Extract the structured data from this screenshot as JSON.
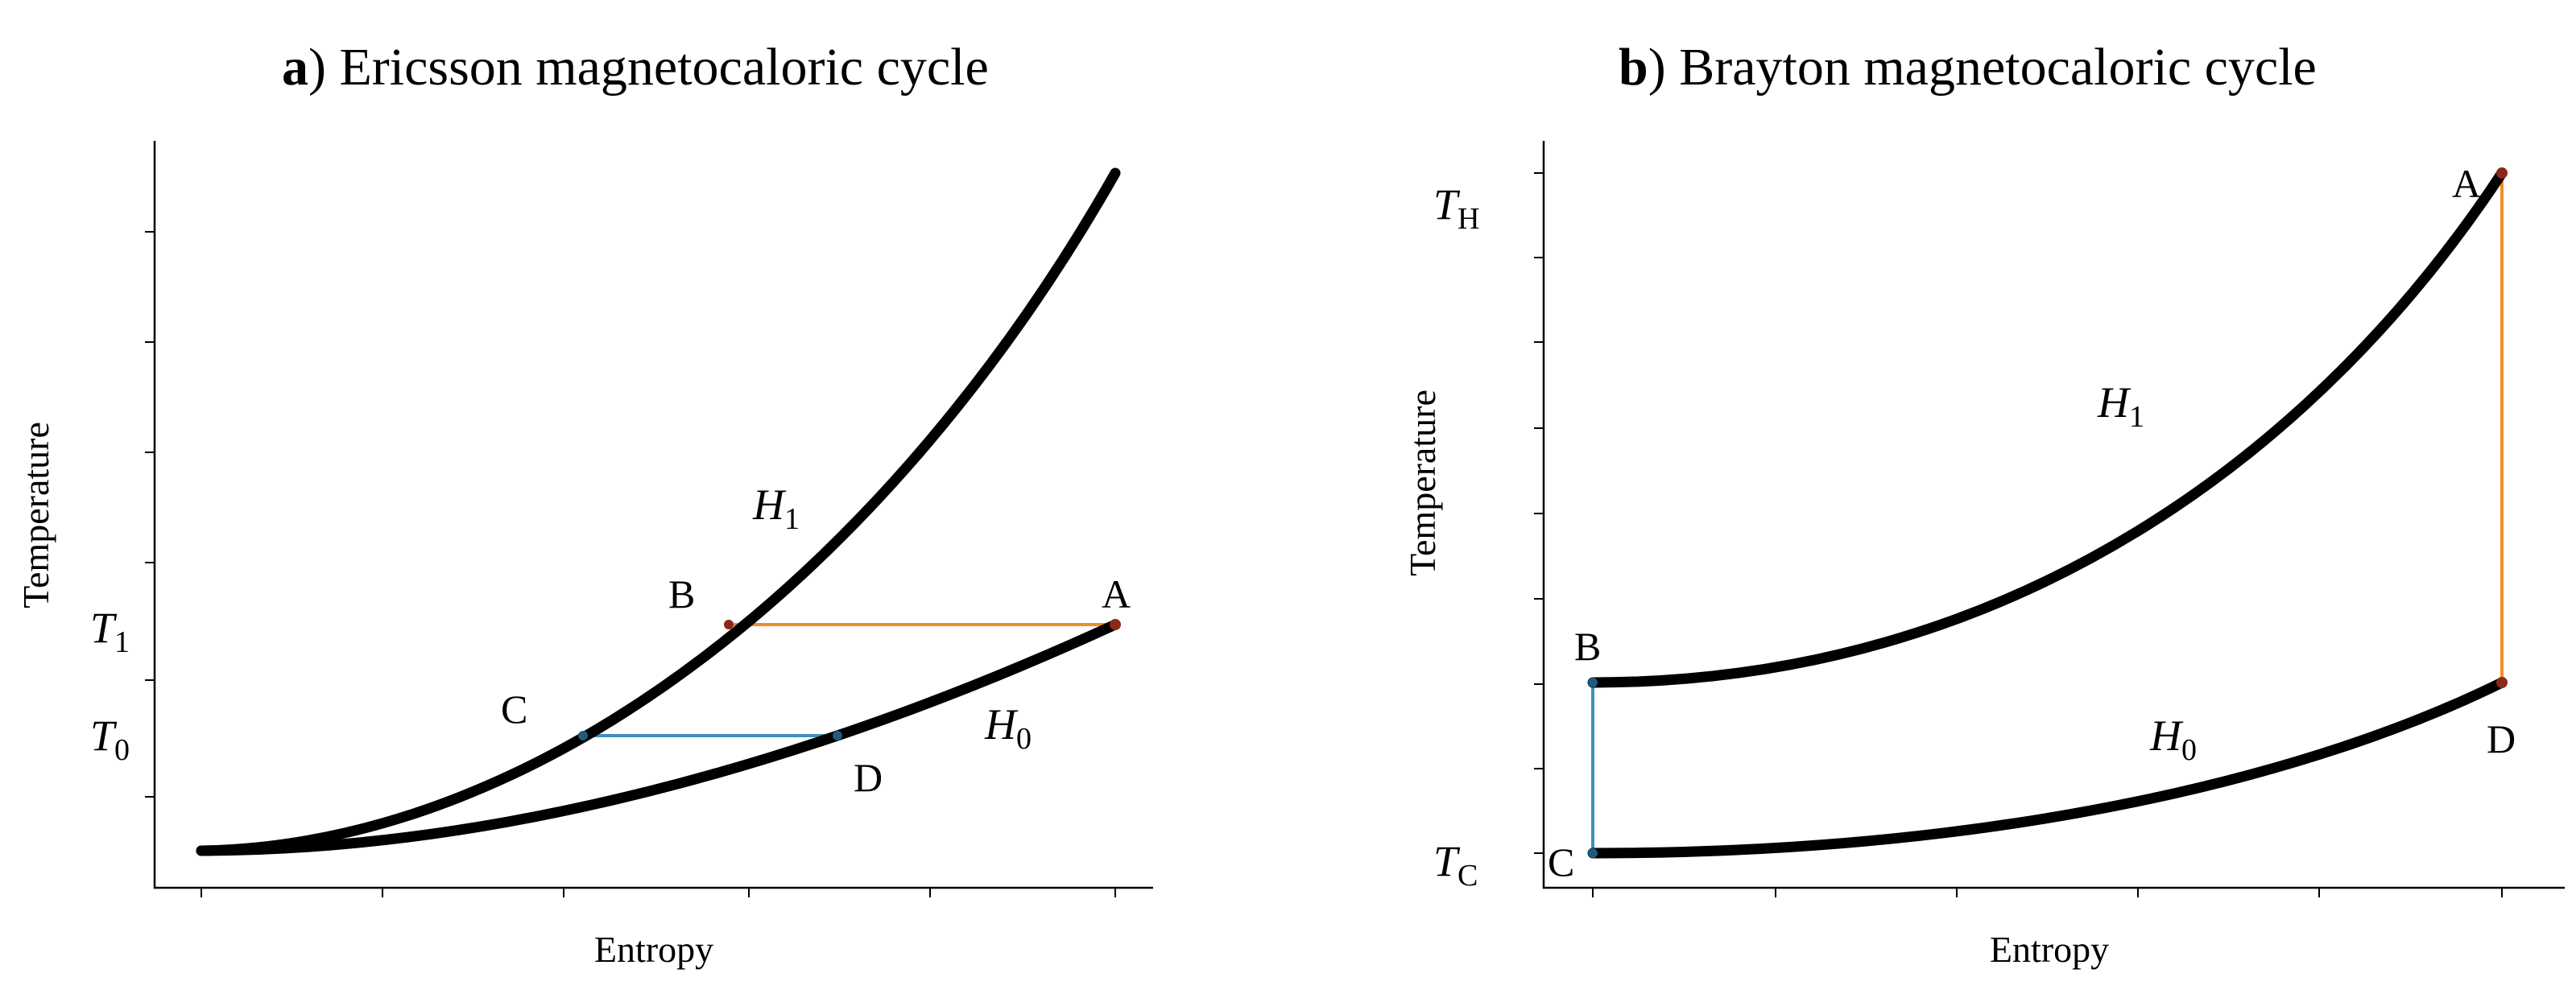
{
  "panels": [
    {
      "id": "a",
      "title_letter": "a",
      "title_paren": ")",
      "title_text": " Ericsson magnetocaloric cycle",
      "xlabel": "Entropy",
      "ylabel": "Temperature",
      "levels": [
        {
          "sym": "T",
          "sub": "1"
        },
        {
          "sym": "T",
          "sub": "0"
        }
      ],
      "curves": [
        {
          "sym": "H",
          "sub": "1"
        },
        {
          "sym": "H",
          "sub": "0"
        }
      ],
      "points": [
        "A",
        "B",
        "C",
        "D"
      ],
      "colors": {
        "hot_line": "#f28c28",
        "cold_line": "#3f8fc0",
        "curve": "#000000"
      }
    },
    {
      "id": "b",
      "title_letter": "b",
      "title_paren": ")",
      "title_text": " Brayton magnetocaloric cycle",
      "xlabel": "Entropy",
      "ylabel": "Temperature",
      "levels": [
        {
          "sym": "T",
          "sub": "H"
        },
        {
          "sym": "T",
          "sub": "C"
        }
      ],
      "curves": [
        {
          "sym": "H",
          "sub": "1"
        },
        {
          "sym": "H",
          "sub": "0"
        }
      ],
      "points": [
        "A",
        "B",
        "C",
        "D"
      ],
      "colors": {
        "hot_line": "#f28c28",
        "cold_line": "#3f8fc0",
        "curve": "#000000"
      }
    }
  ]
}
